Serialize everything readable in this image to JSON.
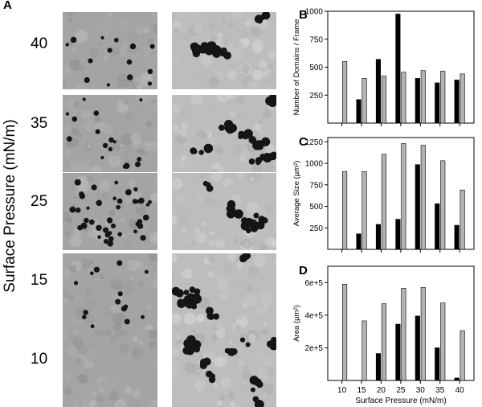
{
  "panel_a": {
    "letter": "A",
    "y_title": "Surface Pressure (mN/m)",
    "rows": [
      {
        "pressure": "40",
        "left_dark_domains": 14,
        "right_dark_domains": 26
      },
      {
        "pressure": "35",
        "left_dark_domains": 16,
        "right_dark_domains": 38
      },
      {
        "pressure": "25",
        "left_dark_domains": 40,
        "right_dark_domains": 22
      },
      {
        "pressure": "15",
        "left_dark_domains": 14,
        "right_dark_domains": 34
      },
      {
        "pressure": "10",
        "left_dark_domains": 0,
        "right_dark_domains": 30
      }
    ]
  },
  "chart_data": [
    {
      "panel": "B",
      "type": "bar",
      "ylabel": "Number of Domains / Frame",
      "ylim": [
        0,
        1000
      ],
      "yticks": [
        250,
        500,
        750,
        1000
      ],
      "categories": [
        "10",
        "15",
        "20",
        "25",
        "30",
        "35",
        "40"
      ],
      "series": [
        {
          "color": "#000000",
          "values": [
            0,
            210,
            570,
            975,
            400,
            360,
            385
          ]
        },
        {
          "color": "#b3b3b3",
          "values": [
            550,
            400,
            420,
            455,
            470,
            465,
            440
          ]
        }
      ]
    },
    {
      "panel": "C",
      "type": "bar",
      "ylabel": "Average Size (µm²)",
      "ylim": [
        0,
        1300
      ],
      "yticks": [
        250,
        500,
        750,
        1000,
        1250
      ],
      "categories": [
        "10",
        "15",
        "20",
        "25",
        "30",
        "35",
        "40"
      ],
      "series": [
        {
          "color": "#000000",
          "values": [
            0,
            180,
            290,
            350,
            985,
            530,
            280
          ]
        },
        {
          "color": "#b3b3b3",
          "values": [
            905,
            905,
            1105,
            1230,
            1210,
            1030,
            690
          ]
        }
      ]
    },
    {
      "panel": "D",
      "type": "bar",
      "ylabel": "Area (µm²)",
      "xlabel": "Surface Pressure (mN/m)",
      "ylim": [
        0,
        700000
      ],
      "yticks": [
        200000,
        400000,
        600000
      ],
      "ytick_labels": [
        "2e+5",
        "4e+5",
        "6e+5"
      ],
      "categories": [
        "10",
        "15",
        "20",
        "25",
        "30",
        "35",
        "40"
      ],
      "series": [
        {
          "color": "#000000",
          "values": [
            0,
            0,
            165000,
            345000,
            395000,
            200000,
            15000
          ]
        },
        {
          "color": "#b3b3b3",
          "values": [
            590000,
            365000,
            470000,
            565000,
            570000,
            475000,
            305000
          ]
        }
      ]
    }
  ]
}
